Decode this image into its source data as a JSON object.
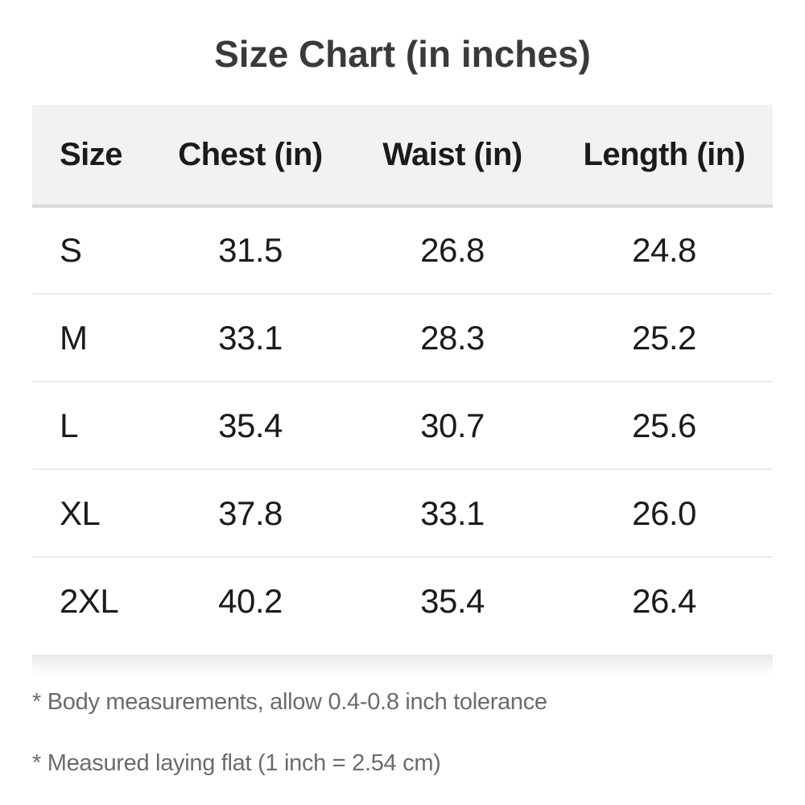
{
  "chart_data": {
    "type": "table",
    "title": "Size Chart (in inches)",
    "columns": [
      "Size",
      "Chest (in)",
      "Waist (in)",
      "Length (in)"
    ],
    "rows": [
      [
        "S",
        "31.5",
        "26.8",
        "24.8"
      ],
      [
        "M",
        "33.1",
        "28.3",
        "25.2"
      ],
      [
        "L",
        "35.4",
        "30.7",
        "25.6"
      ],
      [
        "XL",
        "37.8",
        "33.1",
        "26.0"
      ],
      [
        "2XL",
        "40.2",
        "35.4",
        "26.4"
      ]
    ]
  },
  "footnotes": [
    "* Body measurements, allow 0.4-0.8 inch tolerance",
    "* Measured laying flat (1 inch = 2.54 cm)"
  ],
  "colors": {
    "page_background": "#ffffff",
    "title_text": "#3a3a3a",
    "table_text": "#1b1b1b",
    "header_background": "#f2f2f2",
    "header_border": "#d8d8d8",
    "row_divider": "#ebebeb",
    "footnote_text": "#6b6b6b"
  }
}
